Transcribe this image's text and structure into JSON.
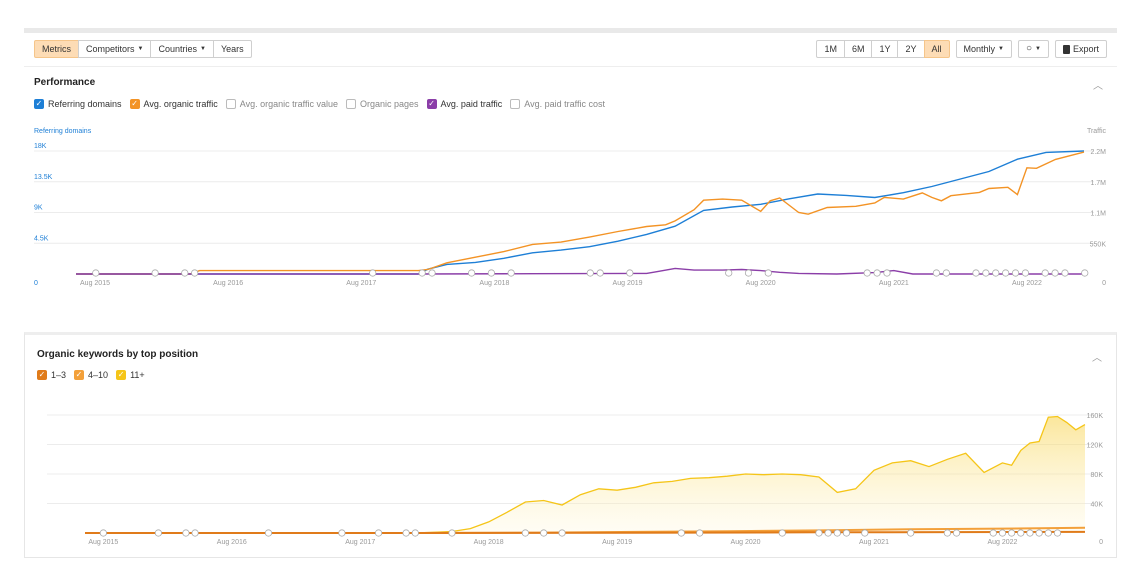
{
  "toolbar": {
    "left_buttons": [
      {
        "label": "Metrics",
        "active": true,
        "dropdown": false
      },
      {
        "label": "Competitors",
        "active": false,
        "dropdown": true
      },
      {
        "label": "Countries",
        "active": false,
        "dropdown": true
      },
      {
        "label": "Years",
        "active": false,
        "dropdown": false
      }
    ],
    "ranges": [
      {
        "label": "1M",
        "active": false
      },
      {
        "label": "6M",
        "active": false
      },
      {
        "label": "1Y",
        "active": false
      },
      {
        "label": "2Y",
        "active": false
      },
      {
        "label": "All",
        "active": true
      }
    ],
    "interval": "Monthly",
    "export": "Export"
  },
  "performance": {
    "title": "Performance",
    "legend": [
      {
        "label": "Referring domains",
        "checked": true,
        "color": "#1e7fd6"
      },
      {
        "label": "Avg. organic traffic",
        "checked": true,
        "color": "#f39325"
      },
      {
        "label": "Avg. organic traffic value",
        "checked": false,
        "color": "#bbbbbb"
      },
      {
        "label": "Organic pages",
        "checked": false,
        "color": "#bbbbbb"
      },
      {
        "label": "Avg. paid traffic",
        "checked": true,
        "color": "#8b3ea8"
      },
      {
        "label": "Avg. paid traffic cost",
        "checked": false,
        "color": "#bbbbbb"
      }
    ]
  },
  "keywords": {
    "title": "Organic keywords by top position",
    "legend": [
      {
        "label": "1–3",
        "checked": true,
        "color": "#e07b1a"
      },
      {
        "label": "4–10",
        "checked": true,
        "color": "#f3a03a"
      },
      {
        "label": "11+",
        "checked": true,
        "color": "#f5c518"
      }
    ]
  },
  "chart_data": [
    {
      "type": "line",
      "title": "Performance",
      "left_axis_label": "Referring domains",
      "right_axis_label": "Traffic",
      "x_labels": [
        "Aug 2015",
        "Aug 2016",
        "Aug 2017",
        "Aug 2018",
        "Aug 2019",
        "Aug 2020",
        "Aug 2021",
        "Aug 2022"
      ],
      "left_ticks": [
        "0",
        "4.5K",
        "9K",
        "13.5K",
        "18K"
      ],
      "right_ticks": [
        "0",
        "550K",
        "1.1M",
        "1.7M",
        "2.2M"
      ],
      "ylim_left": [
        0,
        18000
      ],
      "ylim_right": [
        0,
        2200000
      ],
      "x_months_span": [
        0,
        84
      ],
      "series": [
        {
          "name": "Referring domains",
          "axis": "left",
          "color": "#1e7fd6",
          "points": [
            [
              0,
              0
            ],
            [
              12,
              0
            ],
            [
              24,
              0
            ],
            [
              36,
              0
            ],
            [
              37,
              700
            ],
            [
              39,
              1400
            ],
            [
              42,
              1700
            ],
            [
              45,
              2300
            ],
            [
              48,
              3100
            ],
            [
              51,
              3500
            ],
            [
              54,
              4000
            ],
            [
              57,
              4800
            ],
            [
              60,
              5800
            ],
            [
              63,
              7000
            ],
            [
              66,
              9300
            ],
            [
              69,
              9800
            ],
            [
              72,
              10200
            ],
            [
              75,
              11000
            ],
            [
              78,
              11700
            ],
            [
              81,
              11500
            ],
            [
              84,
              11200
            ],
            [
              87,
              11900
            ],
            [
              90,
              12800
            ],
            [
              93,
              13900
            ],
            [
              96,
              15000
            ],
            [
              99,
              16800
            ],
            [
              102,
              17800
            ],
            [
              106,
              18000
            ]
          ]
        },
        {
          "name": "Avg. organic traffic",
          "axis": "right",
          "color": "#f39325",
          "points": [
            [
              0,
              0
            ],
            [
              12,
              0
            ],
            [
              13,
              60000
            ],
            [
              24,
              60000
            ],
            [
              36,
              60000
            ],
            [
              37,
              80000
            ],
            [
              39,
              200000
            ],
            [
              42,
              300000
            ],
            [
              45,
              400000
            ],
            [
              48,
              530000
            ],
            [
              51,
              570000
            ],
            [
              54,
              660000
            ],
            [
              57,
              760000
            ],
            [
              60,
              850000
            ],
            [
              62,
              880000
            ],
            [
              63,
              950000
            ],
            [
              65,
              1150000
            ],
            [
              66,
              1320000
            ],
            [
              68,
              1340000
            ],
            [
              70,
              1320000
            ],
            [
              72,
              1120000
            ],
            [
              73,
              1310000
            ],
            [
              74,
              1360000
            ],
            [
              76,
              1100000
            ],
            [
              77,
              1070000
            ],
            [
              79,
              1190000
            ],
            [
              82,
              1210000
            ],
            [
              84,
              1270000
            ],
            [
              85,
              1370000
            ],
            [
              87,
              1340000
            ],
            [
              89,
              1450000
            ],
            [
              90,
              1370000
            ],
            [
              91,
              1310000
            ],
            [
              92,
              1400000
            ],
            [
              95,
              1460000
            ],
            [
              96,
              1530000
            ],
            [
              98,
              1550000
            ],
            [
              99,
              1420000
            ],
            [
              100,
              1900000
            ],
            [
              101,
              1890000
            ],
            [
              103,
              2050000
            ],
            [
              106,
              2180000
            ]
          ]
        },
        {
          "name": "Avg. paid traffic",
          "axis": "right",
          "color": "#8b3ea8",
          "points": [
            [
              0,
              0
            ],
            [
              36,
              0
            ],
            [
              48,
              5000
            ],
            [
              60,
              10000
            ],
            [
              61,
              40000
            ],
            [
              63,
              100000
            ],
            [
              65,
              70000
            ],
            [
              68,
              70000
            ],
            [
              70,
              80000
            ],
            [
              72,
              60000
            ],
            [
              74,
              30000
            ],
            [
              76,
              10000
            ],
            [
              80,
              0
            ],
            [
              84,
              25000
            ],
            [
              86,
              60000
            ],
            [
              88,
              0
            ],
            [
              106,
              0
            ]
          ]
        }
      ]
    },
    {
      "type": "area",
      "title": "Organic keywords by top position",
      "x_labels": [
        "Aug 2015",
        "Aug 2016",
        "Aug 2017",
        "Aug 2018",
        "Aug 2019",
        "Aug 2020",
        "Aug 2021",
        "Aug 2022"
      ],
      "right_ticks": [
        "0",
        "40K",
        "80K",
        "120K",
        "160K"
      ],
      "ylim": [
        0,
        160000
      ],
      "series": [
        {
          "name": "11+",
          "color": "#f5c518",
          "points": [
            [
              0,
              0
            ],
            [
              24,
              0
            ],
            [
              36,
              0
            ],
            [
              40,
              2000
            ],
            [
              42,
              6000
            ],
            [
              44,
              15000
            ],
            [
              46,
              28000
            ],
            [
              48,
              42000
            ],
            [
              50,
              44000
            ],
            [
              52,
              38000
            ],
            [
              54,
              52000
            ],
            [
              56,
              60000
            ],
            [
              58,
              58000
            ],
            [
              60,
              62000
            ],
            [
              62,
              68000
            ],
            [
              64,
              70000
            ],
            [
              66,
              74000
            ],
            [
              68,
              75000
            ],
            [
              70,
              77000
            ],
            [
              72,
              80000
            ],
            [
              74,
              79000
            ],
            [
              76,
              80000
            ],
            [
              78,
              79000
            ],
            [
              80,
              76000
            ],
            [
              82,
              55000
            ],
            [
              84,
              60000
            ],
            [
              86,
              85000
            ],
            [
              88,
              95000
            ],
            [
              90,
              98000
            ],
            [
              92,
              90000
            ],
            [
              94,
              100000
            ],
            [
              96,
              108000
            ],
            [
              98,
              82000
            ],
            [
              100,
              95000
            ],
            [
              101,
              92000
            ],
            [
              102,
              112000
            ],
            [
              103,
              122000
            ],
            [
              104,
              124000
            ],
            [
              105,
              157000
            ],
            [
              106,
              158000
            ],
            [
              107,
              150000
            ],
            [
              108,
              140000
            ],
            [
              109,
              147000
            ]
          ]
        },
        {
          "name": "4–10",
          "color": "#f3a03a",
          "points": [
            [
              0,
              0
            ],
            [
              36,
              0
            ],
            [
              50,
              500
            ],
            [
              60,
              1500
            ],
            [
              70,
              2500
            ],
            [
              80,
              3500
            ],
            [
              90,
              5000
            ],
            [
              100,
              6000
            ],
            [
              109,
              7000
            ]
          ]
        },
        {
          "name": "1–3",
          "color": "#e07b1a",
          "points": [
            [
              0,
              0
            ],
            [
              36,
              0
            ],
            [
              60,
              300
            ],
            [
              80,
              1000
            ],
            [
              109,
              1500
            ]
          ]
        }
      ]
    }
  ]
}
